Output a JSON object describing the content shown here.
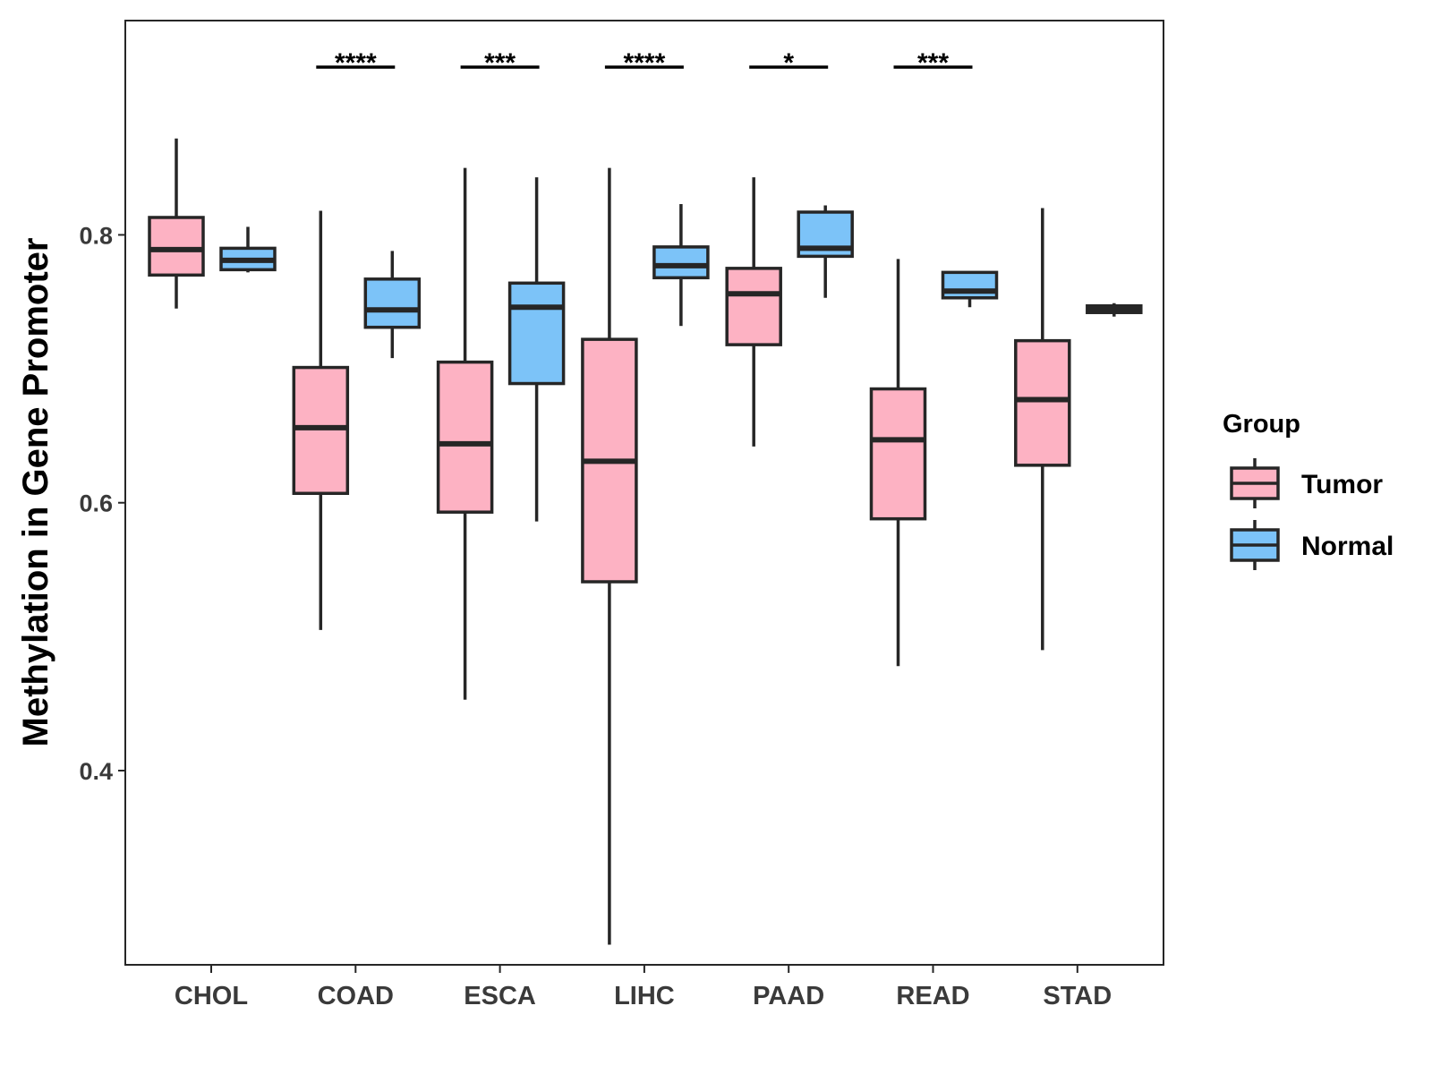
{
  "chart_data": {
    "type": "boxplot",
    "ylabel": "Methylation in Gene Promoter",
    "xlabel": "",
    "ylim": [
      0.255,
      0.96
    ],
    "yticks": [
      "0.4",
      "0.6",
      "0.8"
    ],
    "yticks_values": [
      0.4,
      0.6,
      0.8
    ],
    "categories": [
      "CHOL",
      "COAD",
      "ESCA",
      "LIHC",
      "PAAD",
      "READ",
      "STAD"
    ],
    "legend": {
      "title": "Group",
      "position": "right",
      "entries": [
        "Tumor",
        "Normal"
      ]
    },
    "colors": {
      "Tumor": "#FDB2C3",
      "Normal": "#7CC3F8",
      "stroke": "#262626"
    },
    "series": [
      {
        "name": "Tumor",
        "boxes": [
          {
            "category": "CHOL",
            "whisker_low": 0.745,
            "q1": 0.77,
            "median": 0.789,
            "q3": 0.813,
            "whisker_high": 0.872
          },
          {
            "category": "COAD",
            "whisker_low": 0.505,
            "q1": 0.607,
            "median": 0.656,
            "q3": 0.701,
            "whisker_high": 0.818
          },
          {
            "category": "ESCA",
            "whisker_low": 0.453,
            "q1": 0.593,
            "median": 0.644,
            "q3": 0.705,
            "whisker_high": 0.85
          },
          {
            "category": "LIHC",
            "whisker_low": 0.27,
            "q1": 0.541,
            "median": 0.631,
            "q3": 0.722,
            "whisker_high": 0.85
          },
          {
            "category": "PAAD",
            "whisker_low": 0.642,
            "q1": 0.718,
            "median": 0.756,
            "q3": 0.775,
            "whisker_high": 0.843
          },
          {
            "category": "READ",
            "whisker_low": 0.478,
            "q1": 0.588,
            "median": 0.647,
            "q3": 0.685,
            "whisker_high": 0.782
          },
          {
            "category": "STAD",
            "whisker_low": 0.49,
            "q1": 0.628,
            "median": 0.677,
            "q3": 0.721,
            "whisker_high": 0.82
          }
        ]
      },
      {
        "name": "Normal",
        "boxes": [
          {
            "category": "CHOL",
            "whisker_low": 0.772,
            "q1": 0.774,
            "median": 0.781,
            "q3": 0.79,
            "whisker_high": 0.806
          },
          {
            "category": "COAD",
            "whisker_low": 0.708,
            "q1": 0.731,
            "median": 0.744,
            "q3": 0.767,
            "whisker_high": 0.788
          },
          {
            "category": "ESCA",
            "whisker_low": 0.586,
            "q1": 0.689,
            "median": 0.746,
            "q3": 0.764,
            "whisker_high": 0.843
          },
          {
            "category": "LIHC",
            "whisker_low": 0.732,
            "q1": 0.768,
            "median": 0.777,
            "q3": 0.791,
            "whisker_high": 0.823
          },
          {
            "category": "PAAD",
            "whisker_low": 0.753,
            "q1": 0.784,
            "median": 0.79,
            "q3": 0.817,
            "whisker_high": 0.822
          },
          {
            "category": "READ",
            "whisker_low": 0.746,
            "q1": 0.753,
            "median": 0.758,
            "q3": 0.772,
            "whisker_high": 0.772
          },
          {
            "category": "STAD",
            "whisker_low": 0.739,
            "q1": 0.742,
            "median": 0.744,
            "q3": 0.747,
            "whisker_high": 0.749
          }
        ]
      }
    ],
    "significance": [
      {
        "category": "COAD",
        "label": "****"
      },
      {
        "category": "ESCA",
        "label": "***"
      },
      {
        "category": "LIHC",
        "label": "****"
      },
      {
        "category": "PAAD",
        "label": "*"
      },
      {
        "category": "READ",
        "label": "***"
      }
    ]
  }
}
